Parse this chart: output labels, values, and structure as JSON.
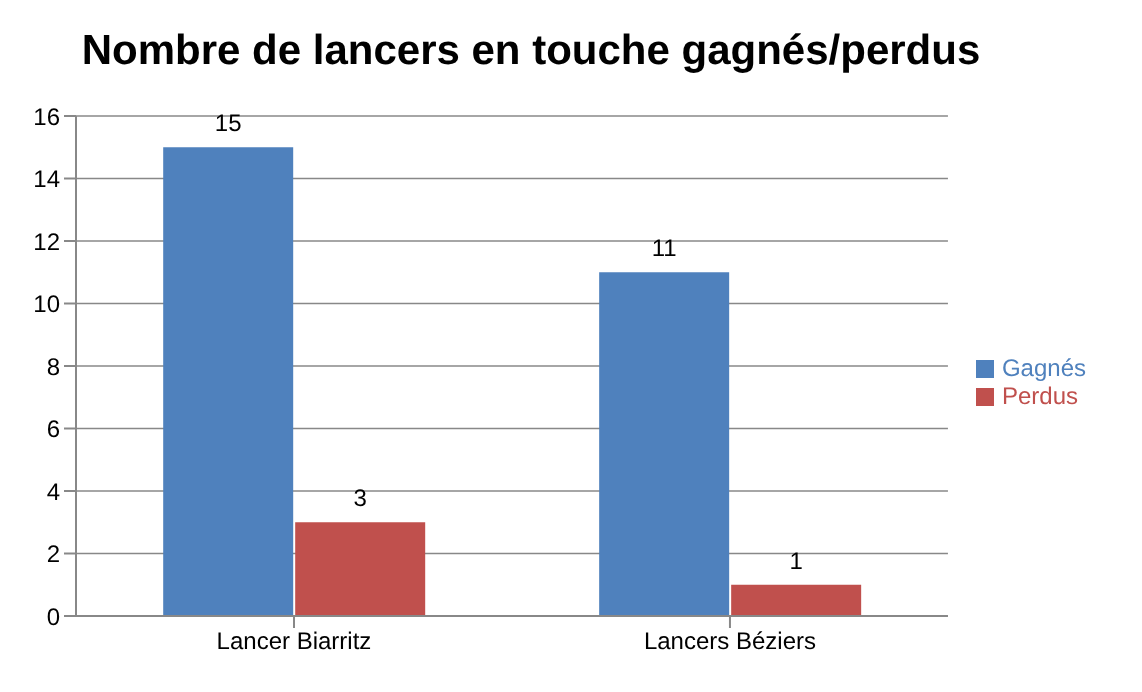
{
  "chart_data": {
    "type": "bar",
    "title": "Nombre de lancers en touche gagnés/perdus",
    "categories": [
      "Lancer Biarritz",
      "Lancers Béziers"
    ],
    "series": [
      {
        "name": "Gagnés",
        "color": "#4f81bd",
        "values": [
          15,
          11
        ]
      },
      {
        "name": "Perdus",
        "color": "#c0504d",
        "values": [
          3,
          1
        ]
      }
    ],
    "ylim": [
      0,
      16
    ],
    "yticks": [
      0,
      2,
      4,
      6,
      8,
      10,
      12,
      14,
      16
    ],
    "grid": "y",
    "legend": "right",
    "data_labels": true
  }
}
